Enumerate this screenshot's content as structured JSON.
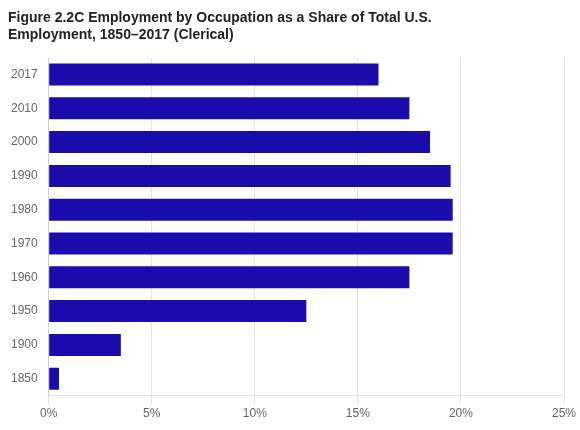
{
  "chart_data": {
    "type": "bar",
    "orientation": "horizontal",
    "title": [
      "Figure 2.2C Employment by Occupation as a Share of Total U.S.",
      "Employment, 1850–2017 (Clerical)"
    ],
    "categories": [
      "2017",
      "2010",
      "2000",
      "1990",
      "1980",
      "1970",
      "1960",
      "1950",
      "1900",
      "1850"
    ],
    "values": [
      0.16,
      0.175,
      0.185,
      0.195,
      0.196,
      0.196,
      0.175,
      0.125,
      0.035,
      0.005
    ],
    "color": "#1a0dab",
    "xlim": [
      0,
      0.25
    ],
    "xticks": [
      {
        "value": 0,
        "label": "0%"
      },
      {
        "value": 0.05,
        "label": "5%"
      },
      {
        "value": 0.1,
        "label": "10%"
      },
      {
        "value": 0.15,
        "label": "15%"
      },
      {
        "value": 0.2,
        "label": "20%"
      },
      {
        "value": 0.25,
        "label": "25%"
      }
    ],
    "grid": true
  }
}
